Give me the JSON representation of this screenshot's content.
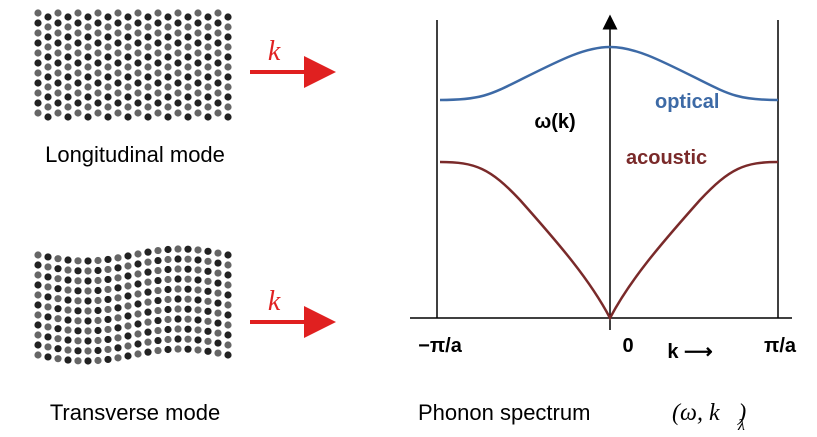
{
  "longitudinal": {
    "label": "Longitudinal mode",
    "wave_vector": "k⃗"
  },
  "transverse": {
    "label": "Transverse mode",
    "wave_vector": "k⃗"
  },
  "spectrum": {
    "y_label": "ω(k)",
    "optical": "optical",
    "acoustic": "acoustic",
    "x_ticks": [
      "−π/a",
      "0",
      "π/a"
    ],
    "x_label": "k ⟶",
    "caption": "Phonon spectrum",
    "caption_tuple": "(ω, k⃗)",
    "caption_subscript": "λ"
  }
}
